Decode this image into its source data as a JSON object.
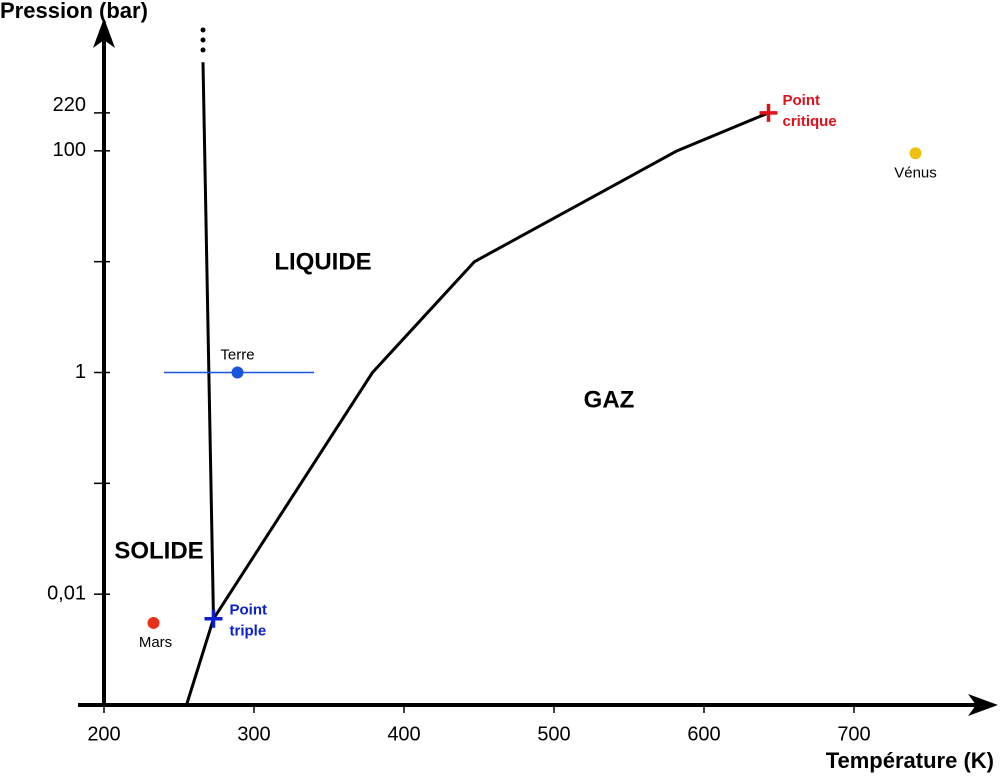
{
  "chart_data": {
    "type": "line",
    "y_label": "Pression (bar)",
    "x_label": "Température (K)",
    "log_y": true,
    "xlim": [
      200,
      790
    ],
    "ylim": [
      0.001,
      1000
    ],
    "xticks": [
      200,
      300,
      400,
      500,
      600,
      700
    ],
    "yticks": [
      {
        "value": 0.01,
        "label": "0,01"
      },
      {
        "value": 0.1,
        "label": null
      },
      1,
      {
        "value": 10,
        "label": null
      },
      100,
      220
    ],
    "series": [
      {
        "color": "#000000",
        "x": [
          273,
          266
        ],
        "values": [
          0.006,
          630
        ]
      },
      {
        "color": "#000000",
        "x": [
          255,
          273,
          379,
          447,
          582,
          643
        ],
        "values": [
          0.001,
          0.006,
          1,
          10,
          100,
          220
        ]
      }
    ],
    "points": [
      {
        "label": [
          "Point",
          "triple"
        ],
        "x": 273,
        "y": 0.006,
        "color": "#0a1fd0",
        "marker": "cross"
      },
      {
        "label": [
          "Point",
          "critique"
        ],
        "x": 643,
        "y": 220,
        "color": "#e0101a",
        "marker": "cross"
      },
      {
        "label": [
          "Mars"
        ],
        "x": 233,
        "y": 0.0055,
        "color": "#e8311a",
        "marker": "dot"
      },
      {
        "label": [
          "Terre"
        ],
        "x": 289,
        "y": 1,
        "color": "#1a55e0",
        "marker": "dot",
        "xrange": [
          240,
          340
        ]
      },
      {
        "label": [
          "Vénus"
        ],
        "x": 741,
        "y": 95,
        "color": "#f0c010",
        "marker": "dot"
      }
    ],
    "annotations": [
      "LIQUIDE",
      "GAZ",
      "SOLIDE"
    ]
  }
}
